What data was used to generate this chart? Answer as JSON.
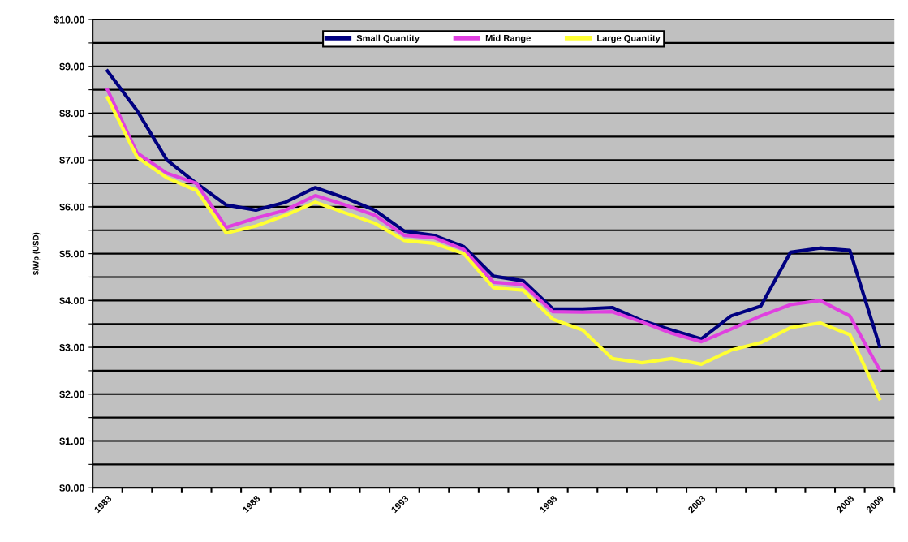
{
  "chart_data": {
    "type": "line",
    "ylabel": "$/Wp (USD)",
    "categories": [
      "1983",
      null,
      null,
      null,
      null,
      "1988",
      null,
      null,
      null,
      null,
      "1993",
      null,
      null,
      null,
      null,
      "1998",
      null,
      null,
      null,
      null,
      "2003",
      null,
      null,
      null,
      null,
      "2008",
      "2009"
    ],
    "series": [
      {
        "name": "Small Quantity",
        "color": "#000080",
        "values": [
          8.9,
          8.05,
          7.0,
          6.5,
          6.04,
          5.93,
          6.1,
          6.41,
          6.19,
          5.93,
          5.48,
          5.39,
          5.15,
          4.52,
          4.42,
          3.82,
          3.82,
          3.85,
          3.57,
          3.37,
          3.18,
          3.67,
          3.88,
          5.03,
          5.12,
          5.07,
          3.03
        ]
      },
      {
        "name": "Mid Range",
        "color": "#e040e0",
        "values": [
          8.5,
          7.15,
          6.72,
          6.5,
          5.56,
          5.76,
          5.93,
          6.24,
          6.04,
          5.82,
          5.39,
          5.34,
          5.09,
          4.39,
          4.34,
          3.76,
          3.75,
          3.76,
          3.54,
          3.3,
          3.12,
          3.39,
          3.67,
          3.91,
          4.0,
          3.67,
          2.52
        ]
      },
      {
        "name": "Large Quantity",
        "color": "#ffff33",
        "values": [
          8.33,
          7.06,
          6.62,
          6.35,
          5.44,
          5.59,
          5.82,
          6.1,
          5.87,
          5.65,
          5.28,
          5.22,
          5.0,
          4.27,
          4.22,
          3.6,
          3.37,
          2.76,
          2.67,
          2.76,
          2.64,
          2.94,
          3.1,
          3.42,
          3.52,
          3.27,
          1.9
        ]
      }
    ],
    "ylim": [
      0,
      10
    ],
    "yticks": [
      {
        "value": 0,
        "label": "$0.00"
      },
      {
        "value": 0.5,
        "label": null
      },
      {
        "value": 1,
        "label": "$1.00"
      },
      {
        "value": 1.5,
        "label": null
      },
      {
        "value": 2,
        "label": "$2.00"
      },
      {
        "value": 2.5,
        "label": null
      },
      {
        "value": 3,
        "label": "$3.00"
      },
      {
        "value": 3.5,
        "label": null
      },
      {
        "value": 4,
        "label": "$4.00"
      },
      {
        "value": 4.5,
        "label": null
      },
      {
        "value": 5,
        "label": "$5.00"
      },
      {
        "value": 5.5,
        "label": null
      },
      {
        "value": 6,
        "label": "$6.00"
      },
      {
        "value": 6.5,
        "label": null
      },
      {
        "value": 7,
        "label": "$7.00"
      },
      {
        "value": 7.5,
        "label": null
      },
      {
        "value": 8,
        "label": "$8.00"
      },
      {
        "value": 8.5,
        "label": null
      },
      {
        "value": 9,
        "label": "$9.00"
      },
      {
        "value": 9.5,
        "label": null
      },
      {
        "value": 10,
        "label": "$10.00"
      }
    ],
    "grid": "y",
    "legend": "top",
    "marker": "none",
    "line_style": "solid"
  }
}
